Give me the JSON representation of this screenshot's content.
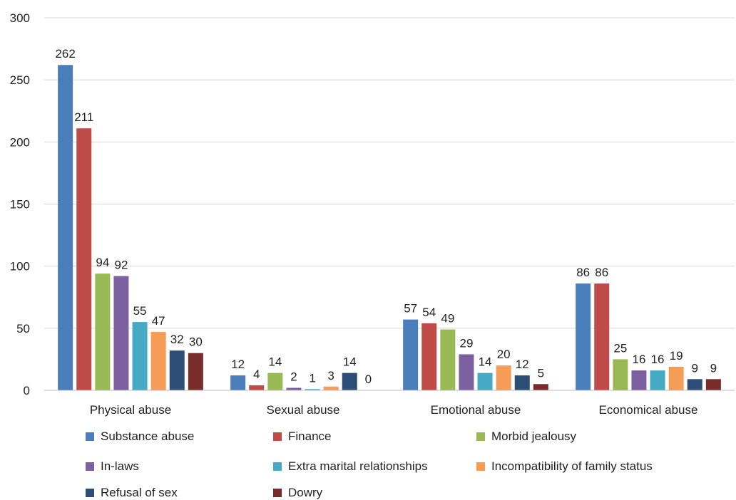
{
  "chart_data": {
    "type": "bar",
    "title": "",
    "xlabel": "",
    "ylabel": "",
    "ylim": [
      0,
      300
    ],
    "yticks": [
      "0",
      "50",
      "100",
      "150",
      "200",
      "250",
      "300"
    ],
    "grid": true,
    "legend_position": "bottom",
    "categories": [
      "Physical abuse",
      "Sexual abuse",
      "Emotional abuse",
      "Economical abuse"
    ],
    "series": [
      {
        "name": "Substance abuse",
        "color": "#4a7ebb",
        "values": [
          262,
          12,
          57,
          86
        ]
      },
      {
        "name": "Finance",
        "color": "#be4b48",
        "values": [
          211,
          4,
          54,
          86
        ]
      },
      {
        "name": "Morbid jealousy",
        "color": "#98b954",
        "values": [
          94,
          14,
          49,
          25
        ]
      },
      {
        "name": "In-laws",
        "color": "#7d60a0",
        "values": [
          92,
          2,
          29,
          16
        ]
      },
      {
        "name": "Extra marital relationships",
        "color": "#46aac4",
        "values": [
          55,
          1,
          14,
          16
        ]
      },
      {
        "name": "Incompatibility of family status",
        "color": "#f59d56",
        "values": [
          47,
          3,
          20,
          19
        ]
      },
      {
        "name": "Refusal of sex",
        "color": "#2c4d75",
        "values": [
          32,
          14,
          12,
          9
        ]
      },
      {
        "name": "Dowry",
        "color": "#772c2a",
        "values": [
          30,
          0,
          5,
          9
        ]
      }
    ]
  }
}
